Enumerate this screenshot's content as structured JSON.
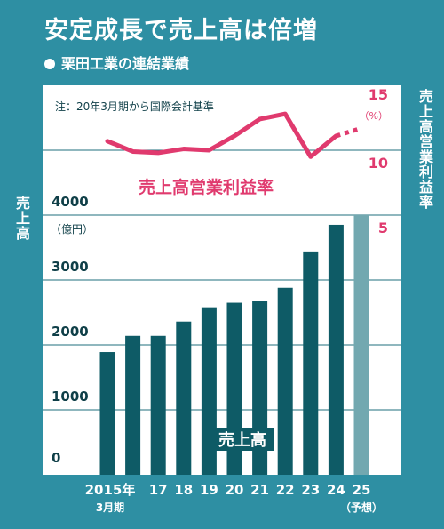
{
  "title": "安定成長で売上高は倍増",
  "subtitle": "栗田工業の連結業績",
  "note": "注：20年3月期から国際会計基準",
  "colors": {
    "background": "#2e8fa3",
    "panel": "#ffffff",
    "bar": "#0e5b66",
    "bar_forecast": "#72a8b0",
    "line": "#e03a6e",
    "grid": "#1f6f7c",
    "axis_text": "#0f3f48"
  },
  "left_axis_title": "売上高",
  "right_axis_title": "売上高営業利益率",
  "chart_data": [
    {
      "type": "bar",
      "categories": [
        "2015年\n3月期",
        "",
        "17",
        "18",
        "19",
        "20",
        "21",
        "22",
        "23",
        "24",
        "25\n（予想）"
      ],
      "series": [
        {
          "name": "売上高",
          "values": [
            1890,
            2140,
            2140,
            2360,
            2580,
            2650,
            2680,
            2880,
            3440,
            3850,
            4000
          ],
          "forecast_index": 10
        }
      ],
      "ylim": [
        0,
        4000
      ],
      "yticks": [
        0,
        1000,
        2000,
        3000,
        4000
      ],
      "yunit": "（億円）"
    },
    {
      "type": "line",
      "series": [
        {
          "name": "売上高営業利益率",
          "values": [
            10.7,
            9.9,
            9.8,
            10.1,
            10.0,
            11.1,
            12.4,
            12.8,
            9.5,
            11.1,
            11.7
          ],
          "forecast_from_index": 9
        }
      ],
      "ylim": [
        5,
        15
      ],
      "yticks": [
        5,
        10,
        15
      ],
      "yunit": "（%）"
    }
  ]
}
